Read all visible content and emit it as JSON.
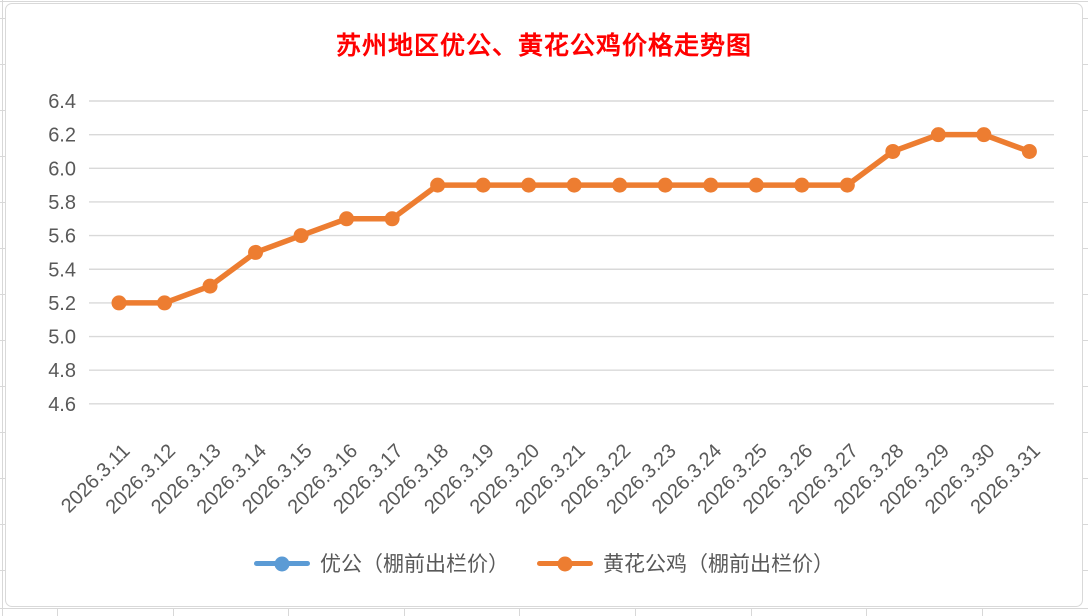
{
  "chart": {
    "title": "苏州地区优公、黄花公鸡价格走势图",
    "title_color": "#FF0000"
  },
  "legend": {
    "items": [
      {
        "label": "优公（棚前出栏价）",
        "color": "#5B9BD5"
      },
      {
        "label": "黄花公鸡（棚前出栏价）",
        "color": "#ED7D31"
      }
    ]
  },
  "chart_data": {
    "type": "line",
    "title": "苏州地区优公、黄花公鸡价格走势图",
    "categories": [
      "2026.3.11",
      "2026.3.12",
      "2026.3.13",
      "2026.3.14",
      "2026.3.15",
      "2026.3.16",
      "2026.3.17",
      "2026.3.18",
      "2026.3.19",
      "2026.3.20",
      "2026.3.21",
      "2026.3.22",
      "2026.3.23",
      "2026.3.24",
      "2026.3.25",
      "2026.3.26",
      "2026.3.27",
      "2026.3.28",
      "2026.3.29",
      "2026.3.30",
      "2026.3.31"
    ],
    "series": [
      {
        "name": "优公（棚前出栏价）",
        "color": "#5B9BD5",
        "values": []
      },
      {
        "name": "黄花公鸡（棚前出栏价）",
        "color": "#ED7D31",
        "values": [
          5.2,
          5.2,
          5.3,
          5.5,
          5.6,
          5.7,
          5.7,
          5.9,
          5.9,
          5.9,
          5.9,
          5.9,
          5.9,
          5.9,
          5.9,
          5.9,
          5.9,
          6.1,
          6.2,
          6.2,
          6.1
        ]
      }
    ],
    "ylim": [
      4.6,
      6.4
    ],
    "ytick_step": 0.2,
    "ytick_labels": [
      "6.4",
      "6.2",
      "6.0",
      "5.8",
      "5.6",
      "5.4",
      "5.2",
      "5.0",
      "4.8",
      "4.6"
    ],
    "xlabel": "",
    "ylabel": "",
    "grid": true,
    "legend_position": "bottom",
    "axis_text_color": "#595959",
    "gridline_color": "#D9D9D9",
    "note": "优公 series has no visible line in the plot area; only legend entry is shown"
  }
}
